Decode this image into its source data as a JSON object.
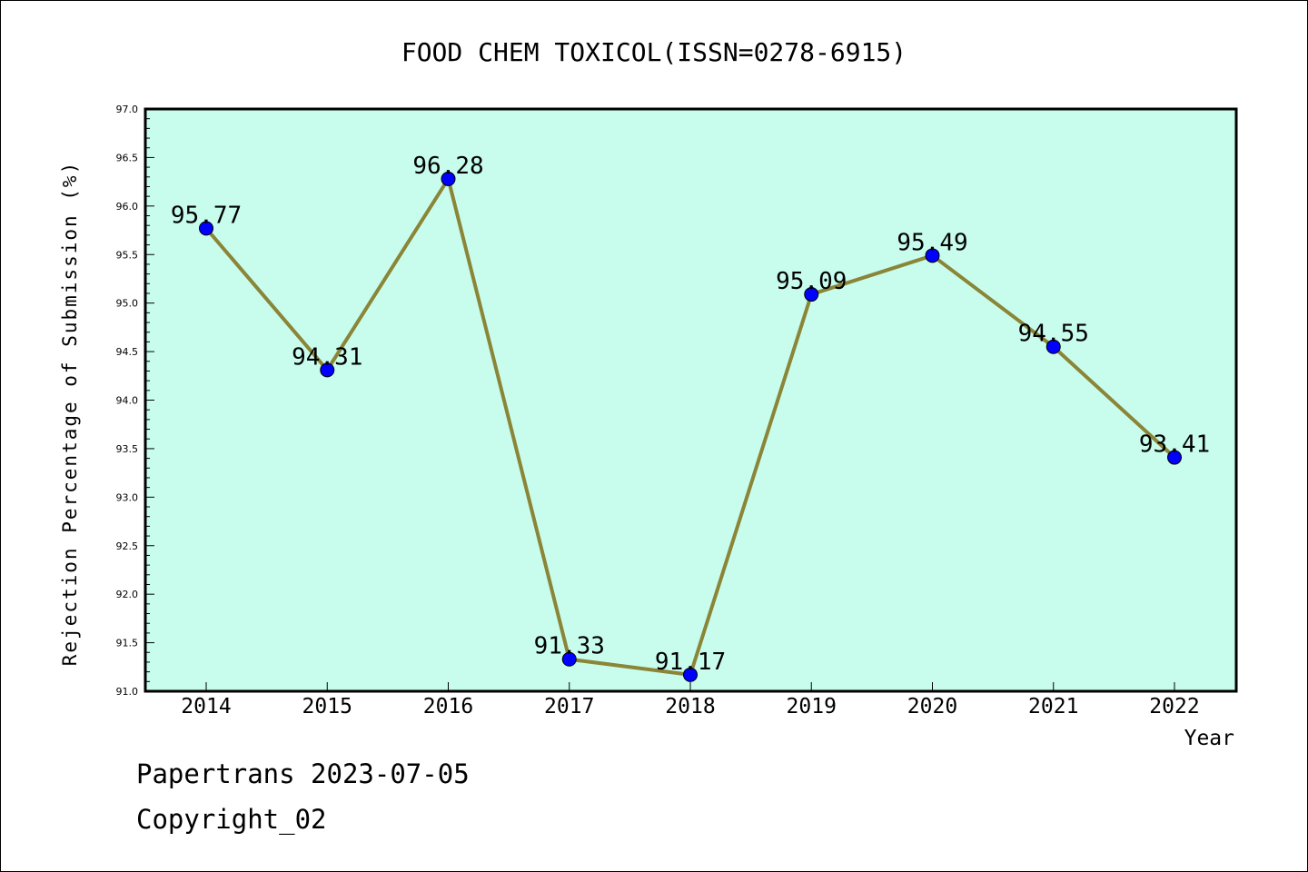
{
  "chart_data": {
    "type": "line",
    "title": "FOOD CHEM TOXICOL(ISSN=0278-6915)",
    "xlabel": "Year",
    "ylabel": "Rejection Percentage of Submission (%)",
    "ylim": [
      91.0,
      97.0
    ],
    "categories": [
      "2014",
      "2015",
      "2016",
      "2017",
      "2018",
      "2019",
      "2020",
      "2021",
      "2022"
    ],
    "series": [
      {
        "values": [
          95.77,
          94.31,
          96.28,
          91.33,
          91.17,
          95.09,
          95.49,
          94.55,
          93.41
        ]
      }
    ],
    "data_labels": [
      "95.77",
      "94.31",
      "96.28",
      "91.33",
      "91.17",
      "95.09",
      "95.49",
      "94.55",
      "93.41"
    ],
    "yticks": [
      "91.0",
      "91.5",
      "92.0",
      "92.5",
      "93.0",
      "93.5",
      "94.0",
      "94.5",
      "95.0",
      "95.5",
      "96.0",
      "96.5",
      "97.0"
    ],
    "colors": {
      "plot_bg": "#c8fdee",
      "line": "#8a8537",
      "marker": "#0000ff"
    }
  },
  "footer": {
    "line1": "Papertrans 2023-07-05",
    "line2": "Copyright_02"
  }
}
